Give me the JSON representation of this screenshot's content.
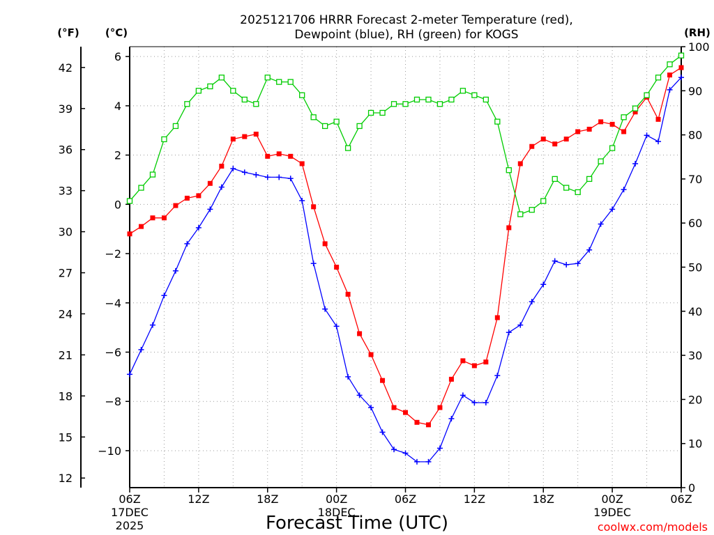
{
  "chart_data": {
    "type": "line",
    "title_lines": [
      "2025121706 HRRR Forecast 2-meter Temperature (red),",
      "Dewpoint (blue), RH (green) for KOGS"
    ],
    "xlabel": "Forecast Time (UTC)",
    "credit": "coolwx.com/models",
    "units": {
      "fahrenheit": "(°F)",
      "celsius": "(°C)",
      "rh": "(RH)"
    },
    "x_range_hours": [
      0,
      48
    ],
    "x_ticks": [
      {
        "hour": 0,
        "lines": [
          "06Z",
          "17DEC",
          "2025"
        ]
      },
      {
        "hour": 6,
        "lines": [
          "12Z"
        ]
      },
      {
        "hour": 12,
        "lines": [
          "18Z"
        ]
      },
      {
        "hour": 18,
        "lines": [
          "00Z",
          "18DEC"
        ]
      },
      {
        "hour": 24,
        "lines": [
          "06Z"
        ]
      },
      {
        "hour": 30,
        "lines": [
          "12Z"
        ]
      },
      {
        "hour": 36,
        "lines": [
          "18Z"
        ]
      },
      {
        "hour": 42,
        "lines": [
          "00Z",
          "19DEC"
        ]
      },
      {
        "hour": 48,
        "lines": [
          "06Z"
        ]
      }
    ],
    "celsius_axis": {
      "ylim": [
        -11.5,
        6.4
      ],
      "ticks": [
        -10,
        -8,
        -6,
        -4,
        -2,
        0,
        2,
        4,
        6
      ]
    },
    "fahrenheit_ticks": [
      12,
      15,
      18,
      21,
      24,
      27,
      30,
      33,
      36,
      39,
      42
    ],
    "rh_axis": {
      "ylim": [
        0,
        100
      ],
      "ticks": [
        0,
        10,
        20,
        30,
        40,
        50,
        60,
        70,
        80,
        90,
        100
      ]
    },
    "grid": true,
    "series": [
      {
        "name": "Temperature",
        "units": "C",
        "color": "#ff0000",
        "marker": "filled-square",
        "values": [
          -1.2,
          -0.9,
          -0.55,
          -0.55,
          -0.05,
          0.25,
          0.35,
          0.85,
          1.55,
          2.65,
          2.75,
          2.85,
          1.95,
          2.05,
          1.95,
          1.65,
          -0.1,
          -1.6,
          -2.55,
          -3.65,
          -5.25,
          -6.1,
          -7.15,
          -8.25,
          -8.45,
          -8.85,
          -8.95,
          -8.25,
          -7.1,
          -6.35,
          -6.55,
          -6.4,
          -4.6,
          -0.95,
          1.65,
          2.35,
          2.65,
          2.45,
          2.65,
          2.95,
          3.05,
          3.35,
          3.25,
          2.95,
          3.75,
          4.35,
          3.45,
          5.25,
          5.55
        ]
      },
      {
        "name": "Dewpoint",
        "units": "C",
        "color": "#0000ff",
        "marker": "plus",
        "values": [
          -6.9,
          -5.9,
          -4.9,
          -3.7,
          -2.7,
          -1.6,
          -0.95,
          -0.2,
          0.7,
          1.45,
          1.3,
          1.2,
          1.1,
          1.1,
          1.05,
          0.15,
          -2.4,
          -4.25,
          -4.95,
          -7.0,
          -7.75,
          -8.25,
          -9.25,
          -9.95,
          -10.1,
          -10.45,
          -10.45,
          -9.9,
          -8.7,
          -7.75,
          -8.05,
          -8.05,
          -6.95,
          -5.2,
          -4.9,
          -3.95,
          -3.25,
          -2.3,
          -2.45,
          -2.4,
          -1.85,
          -0.8,
          -0.2,
          0.6,
          1.65,
          2.8,
          2.55,
          4.65,
          5.15
        ]
      },
      {
        "name": "RH",
        "units": "%",
        "color": "#00cc00",
        "marker": "open-square",
        "values": [
          65,
          68,
          71,
          79,
          82,
          87,
          90,
          91,
          93,
          90,
          88,
          87,
          93,
          92,
          92,
          89,
          84,
          82,
          83,
          77,
          82,
          85,
          85,
          87,
          87,
          88,
          88,
          87,
          88,
          90,
          89,
          88,
          83,
          72,
          62,
          63,
          65,
          70,
          68,
          67,
          70,
          74,
          77,
          84,
          86,
          89,
          93,
          96,
          98
        ]
      }
    ]
  }
}
